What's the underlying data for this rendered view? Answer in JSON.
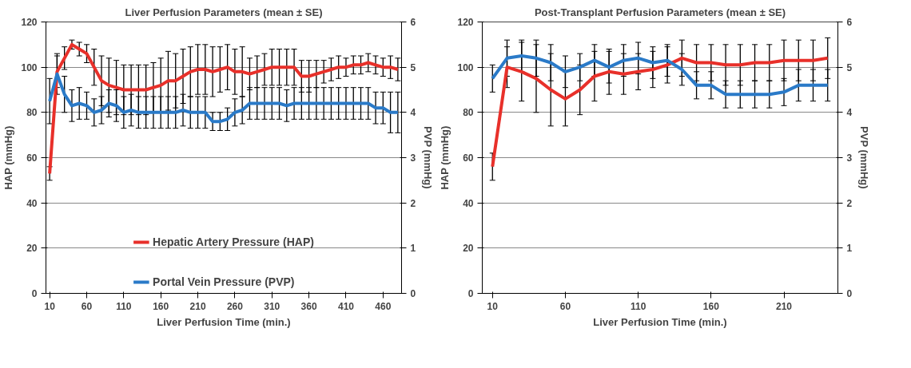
{
  "chart_data": [
    {
      "type": "line",
      "title": "Liver Perfusion Parameters (mean ± SE)",
      "xlabel": "Liver Perfusion Time (min.)",
      "ylabel": "HAP (mmHg)",
      "y2label": "PVP (mmHg)",
      "x": [
        10,
        20,
        30,
        40,
        50,
        60,
        70,
        80,
        90,
        100,
        110,
        120,
        130,
        140,
        150,
        160,
        170,
        180,
        190,
        200,
        210,
        220,
        230,
        240,
        250,
        260,
        270,
        280,
        290,
        300,
        310,
        320,
        330,
        340,
        350,
        360,
        370,
        380,
        390,
        400,
        410,
        420,
        430,
        440,
        450,
        460,
        470,
        480
      ],
      "xlim": [
        5,
        485
      ],
      "xticks": [
        10,
        60,
        110,
        160,
        210,
        260,
        310,
        360,
        410,
        460
      ],
      "ylim": [
        0,
        120
      ],
      "yticks": [
        0,
        20,
        40,
        60,
        80,
        100,
        120
      ],
      "y2lim": [
        0,
        6
      ],
      "y2ticks": [
        0,
        1,
        2,
        3,
        4,
        5,
        6
      ],
      "grid": "y",
      "legend": "bottom",
      "marker": "none",
      "line_style": "solid",
      "series": [
        {
          "name": "Hepatic Artery Pressure (HAP)",
          "color": "#e8302a",
          "values": [
            53,
            98,
            104,
            110,
            108,
            106,
            100,
            94,
            92,
            91,
            90,
            90,
            90,
            90,
            91,
            92,
            94,
            94,
            96,
            98,
            99,
            99,
            98,
            99,
            100,
            98,
            98,
            97,
            98,
            99,
            100,
            100,
            100,
            100,
            96,
            96,
            97,
            98,
            99,
            100,
            100,
            101,
            101,
            102,
            101,
            100,
            100,
            99
          ],
          "errors": [
            3,
            7,
            5,
            2,
            3,
            4,
            8,
            11,
            12,
            12,
            11,
            11,
            11,
            11,
            11,
            12,
            13,
            12,
            12,
            11,
            11,
            11,
            11,
            10,
            10,
            10,
            11,
            7,
            7,
            7,
            8,
            8,
            8,
            8,
            7,
            7,
            6,
            5,
            5,
            5,
            4,
            4,
            4,
            4,
            4,
            4,
            5,
            5
          ]
        },
        {
          "name": "Portal Vein Pressure (PVP)",
          "color": "#2a7ac8",
          "axis": "y2",
          "values": [
            4.25,
            4.85,
            4.4,
            4.15,
            4.2,
            4.15,
            4.0,
            4.05,
            4.2,
            4.15,
            4.0,
            4.05,
            4.0,
            4.0,
            4.0,
            4.0,
            4.0,
            4.0,
            4.05,
            4.0,
            4.0,
            4.0,
            3.8,
            3.8,
            3.85,
            4.0,
            4.05,
            4.2,
            4.2,
            4.2,
            4.2,
            4.2,
            4.15,
            4.2,
            4.2,
            4.2,
            4.2,
            4.2,
            4.2,
            4.2,
            4.2,
            4.2,
            4.2,
            4.2,
            4.1,
            4.1,
            4.0,
            4.0
          ],
          "errors": [
            0.5,
            0.45,
            0.4,
            0.35,
            0.35,
            0.3,
            0.3,
            0.3,
            0.3,
            0.35,
            0.35,
            0.35,
            0.35,
            0.35,
            0.35,
            0.35,
            0.35,
            0.35,
            0.35,
            0.35,
            0.35,
            0.35,
            0.2,
            0.2,
            0.25,
            0.3,
            0.3,
            0.35,
            0.35,
            0.35,
            0.35,
            0.35,
            0.35,
            0.35,
            0.35,
            0.35,
            0.35,
            0.35,
            0.35,
            0.35,
            0.35,
            0.35,
            0.35,
            0.35,
            0.35,
            0.35,
            0.45,
            0.45
          ]
        }
      ]
    },
    {
      "type": "line",
      "title": "Post-Transplant Perfusion Parameters (mean ± SE)",
      "xlabel": "Liver Perfusion Time (min.)",
      "ylabel": "HAP (mmHg)",
      "y2label": "PVP (mmHg)",
      "x": [
        10,
        20,
        30,
        40,
        50,
        60,
        70,
        80,
        90,
        100,
        110,
        120,
        130,
        140,
        150,
        160,
        170,
        180,
        190,
        200,
        210,
        220,
        230,
        240
      ],
      "xlim": [
        3,
        247
      ],
      "xticks": [
        10,
        60,
        110,
        160,
        210
      ],
      "ylim": [
        0,
        120
      ],
      "yticks": [
        0,
        20,
        40,
        60,
        80,
        100,
        120
      ],
      "y2lim": [
        0,
        6
      ],
      "y2ticks": [
        0,
        1,
        2,
        3,
        4,
        5,
        6
      ],
      "grid": "y",
      "marker": "none",
      "line_style": "solid",
      "series": [
        {
          "color": "#e8302a",
          "values": [
            56,
            100,
            98,
            95,
            90,
            86,
            90,
            96,
            98,
            97,
            98,
            99,
            101,
            104,
            102,
            102,
            101,
            101,
            102,
            102,
            103,
            103,
            103,
            104
          ],
          "errors": [
            6,
            9,
            13,
            15,
            16,
            12,
            11,
            11,
            10,
            9,
            8,
            8,
            8,
            8,
            8,
            8,
            9,
            9,
            8,
            8,
            9,
            9,
            9,
            9
          ]
        },
        {
          "color": "#2a7ac8",
          "axis": "y2",
          "values": [
            4.75,
            5.2,
            5.25,
            5.2,
            5.1,
            4.9,
            5.0,
            5.15,
            5.0,
            5.15,
            5.2,
            5.1,
            5.15,
            4.95,
            4.6,
            4.6,
            4.4,
            4.4,
            4.4,
            4.4,
            4.45,
            4.6,
            4.6,
            4.6
          ],
          "errors": [
            0.3,
            0.4,
            0.35,
            0.4,
            0.4,
            0.35,
            0.3,
            0.35,
            0.35,
            0.35,
            0.35,
            0.35,
            0.35,
            0.35,
            0.3,
            0.3,
            0.3,
            0.3,
            0.3,
            0.3,
            0.3,
            0.35,
            0.35,
            0.35
          ]
        }
      ]
    }
  ]
}
